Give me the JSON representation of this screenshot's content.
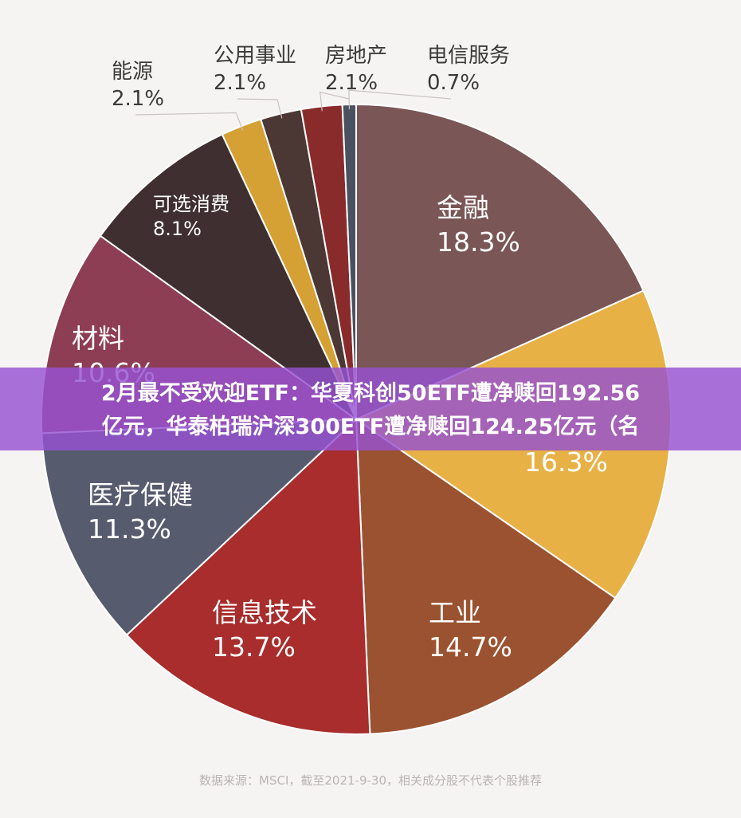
{
  "headline": {
    "line1": "2月最不受欢迎ETF：华夏科创50ETF遭净赎回192.56",
    "line2": "亿元，华泰柏瑞沪深300ETF遭净赎回124.25亿元（名"
  },
  "source": "数据来源：MSCI，截至2021-9-30，相关成分股不代表个股推荐",
  "chart_data": {
    "type": "pie",
    "slices": [
      {
        "name": "金融",
        "value": 18.3,
        "label": "18.3%",
        "color": "#7a5656"
      },
      {
        "name": "",
        "value": 16.3,
        "label": "16.3%",
        "color": "#e8b146"
      },
      {
        "name": "工业",
        "value": 14.7,
        "label": "14.7%",
        "color": "#9b5230"
      },
      {
        "name": "信息技术",
        "value": 13.7,
        "label": "13.7%",
        "color": "#a82d2c"
      },
      {
        "name": "医疗保健",
        "value": 11.3,
        "label": "11.3%",
        "color": "#575b6e"
      },
      {
        "name": "材料",
        "value": 10.6,
        "label": "10.6%",
        "color": "#8e3e54"
      },
      {
        "name": "可选消费",
        "value": 8.1,
        "label": "8.1%",
        "color": "#3f2f30"
      },
      {
        "name": "能源",
        "value": 2.1,
        "label": "2.1%",
        "color": "#d5a034"
      },
      {
        "name": "公用事业",
        "value": 2.1,
        "label": "2.1%",
        "color": "#4b3733"
      },
      {
        "name": "房地产",
        "value": 2.1,
        "label": "2.1%",
        "color": "#8a2b2b"
      },
      {
        "name": "电信服务",
        "value": 0.7,
        "label": "0.7%",
        "color": "#4a5260"
      }
    ],
    "start_angle_deg": 0,
    "direction": "clockwise"
  }
}
